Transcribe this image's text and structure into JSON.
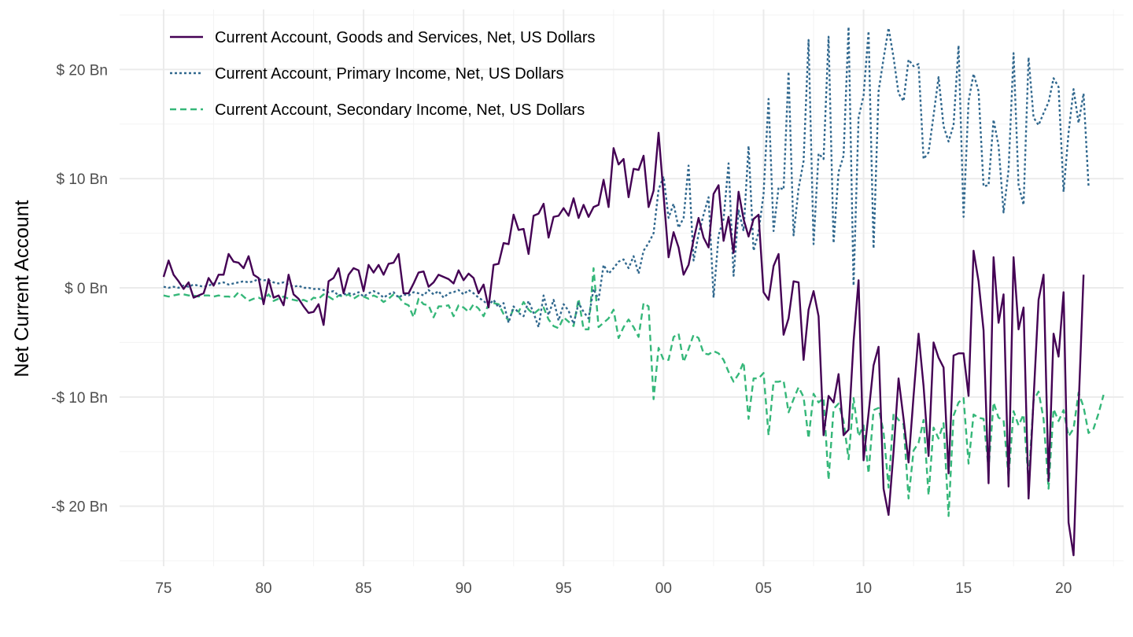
{
  "colors": {
    "goods_services": "#440154",
    "primary_income": "#31688E",
    "secondary_income": "#35B779",
    "grid_major": "#ebebeb",
    "grid_minor": "#f3f3f3"
  },
  "chart_data": {
    "type": "line",
    "title": "",
    "xlabel": "",
    "ylabel": "Net Current Account",
    "xlim": [
      1972.8,
      2023.0
    ],
    "ylim": [
      -25.5,
      25.5
    ],
    "x_ticks": [
      1975,
      1980,
      1985,
      1990,
      1995,
      2000,
      2005,
      2010,
      2015,
      2020
    ],
    "x_tick_labels": [
      "75",
      "80",
      "85",
      "90",
      "95",
      "00",
      "05",
      "10",
      "15",
      "20"
    ],
    "y_ticks": [
      -20,
      -10,
      0,
      10,
      20
    ],
    "y_tick_labels": [
      "-$ 20 Bn",
      "-$ 10 Bn",
      "$ 0 Bn",
      "$ 10 Bn",
      "$ 20 Bn"
    ],
    "grid": true,
    "legend_position": "top-left",
    "series": [
      {
        "name": "Current Account, Goods and Services, Net, US Dollars",
        "style": "solid",
        "x_start": 1975.0,
        "x_step": 0.25,
        "values": [
          1.0,
          2.5,
          1.2,
          0.6,
          -0.1,
          0.5,
          -0.9,
          -0.7,
          -0.5,
          0.9,
          0.2,
          1.2,
          1.2,
          3.1,
          2.4,
          2.3,
          1.8,
          2.9,
          1.2,
          0.9,
          -1.5,
          0.8,
          -0.9,
          -0.7,
          -1.6,
          1.2,
          -0.6,
          -1.0,
          -1.7,
          -2.3,
          -2.2,
          -1.5,
          -3.4,
          0.6,
          0.9,
          1.8,
          -0.5,
          1.2,
          1.8,
          1.6,
          -0.3,
          2.1,
          1.4,
          2.1,
          1.2,
          2.2,
          2.3,
          3.1,
          -0.5,
          -0.5,
          0.4,
          1.4,
          1.5,
          0.1,
          0.5,
          1.2,
          1.0,
          0.8,
          0.4,
          1.6,
          0.7,
          1.3,
          0.9,
          -0.5,
          0.3,
          -1.8,
          2.1,
          2.2,
          4.1,
          4.0,
          6.7,
          5.3,
          5.4,
          3.1,
          6.6,
          6.8,
          7.7,
          4.6,
          6.5,
          6.6,
          7.3,
          6.6,
          8.2,
          6.4,
          7.6,
          6.5,
          7.4,
          7.6,
          9.9,
          7.4,
          12.8,
          11.3,
          11.8,
          8.3,
          10.9,
          10.8,
          12.1,
          7.4,
          8.9,
          14.2,
          8.5,
          2.8,
          5.1,
          3.7,
          1.2,
          2.1,
          4.4,
          6.4,
          4.6,
          3.7,
          8.6,
          9.4,
          4.3,
          6.5,
          3.2,
          8.8,
          6.3,
          4.7,
          6.3,
          6.7,
          -0.4,
          -1.1,
          2.0,
          3.1,
          -4.3,
          -2.8,
          0.6,
          0.5,
          -6.6,
          -2.0,
          -0.3,
          -2.6,
          -13.5,
          -9.9,
          -10.5,
          -7.9,
          -13.5,
          -13.0,
          -4.9,
          0.7,
          -15.8,
          -11.5,
          -7.1,
          -5.4,
          -18.4,
          -20.8,
          -15.0,
          -8.3,
          -12.0,
          -16.0,
          -9.9,
          -4.2,
          -9.0,
          -15.4,
          -5.0,
          -6.4,
          -7.3,
          -17.0,
          -6.2,
          -6.0,
          -6.0,
          -9.9,
          3.4,
          0.6,
          -3.9,
          -17.9,
          2.8,
          -3.2,
          -0.6,
          -18.2,
          2.8,
          -3.8,
          -1.8,
          -19.3,
          -10.2,
          -1.1,
          1.2,
          -17.7,
          -4.2,
          -6.3,
          -0.4,
          -21.5,
          -24.5,
          -11.0,
          1.2
        ]
      },
      {
        "name": "Current Account, Primary Income, Net, US Dollars",
        "style": "dotted",
        "x_start": 1975.0,
        "x_step": 0.25,
        "values": [
          0.1,
          0.0,
          0.1,
          0.0,
          0.2,
          0.1,
          0.3,
          0.2,
          0.1,
          0.2,
          0.4,
          0.4,
          0.5,
          0.3,
          0.4,
          0.5,
          0.6,
          0.5,
          0.6,
          0.8,
          0.7,
          0.7,
          0.5,
          0.4,
          0.5,
          0.3,
          0.1,
          0.2,
          0.0,
          0.0,
          -0.1,
          -0.1,
          -0.2,
          -0.4,
          -0.3,
          -0.7,
          -0.6,
          -0.5,
          -0.6,
          -0.4,
          -0.8,
          -0.5,
          -0.3,
          -0.5,
          -0.9,
          -0.6,
          -0.4,
          -0.9,
          -0.6,
          -0.7,
          -0.4,
          -0.5,
          -0.7,
          -0.2,
          -0.6,
          -0.3,
          -0.9,
          -0.5,
          -0.4,
          -0.2,
          -0.6,
          -0.2,
          -0.5,
          -0.9,
          -1.2,
          -1.6,
          -1.1,
          -1.8,
          -1.4,
          -3.2,
          -1.7,
          -2.3,
          -2.6,
          -1.2,
          -2.3,
          -3.6,
          -0.7,
          -2.5,
          -1.1,
          -3.0,
          -1.5,
          -2.1,
          -3.3,
          -1.4,
          -2.2,
          -2.8,
          -0.1,
          -1.1,
          2.1,
          1.3,
          1.8,
          2.4,
          2.6,
          1.8,
          2.9,
          1.3,
          3.4,
          4.1,
          5.0,
          9.0,
          10.2,
          6.4,
          7.7,
          5.5,
          6.4,
          11.2,
          2.5,
          4.9,
          6.7,
          8.3,
          -0.9,
          4.8,
          6.3,
          11.4,
          1.1,
          7.1,
          5.2,
          13.0,
          3.4,
          5.1,
          8.6,
          17.3,
          5.2,
          9.2,
          9.0,
          19.8,
          4.8,
          9.1,
          11.6,
          22.7,
          4.0,
          12.3,
          11.8,
          23.0,
          4.1,
          10.6,
          12.1,
          23.9,
          0.2,
          15.6,
          17.6,
          23.5,
          3.6,
          18.0,
          21.0,
          23.8,
          21.1,
          17.8,
          17.1,
          20.9,
          20.3,
          20.5,
          11.8,
          12.4,
          15.8,
          19.3,
          14.8,
          13.4,
          14.9,
          22.2,
          6.5,
          17.1,
          19.6,
          18.0,
          9.3,
          9.4,
          15.4,
          13.0,
          6.9,
          10.8,
          21.5,
          9.4,
          7.6,
          21.1,
          15.6,
          14.9,
          16.0,
          17.0,
          19.2,
          18.4,
          8.8,
          14.2,
          18.2,
          15.1,
          17.8,
          9.3
        ]
      },
      {
        "name": "Current Account, Secondary Income, Net, US Dollars",
        "style": "dashed",
        "x_start": 1975.0,
        "x_step": 0.25,
        "values": [
          -0.7,
          -0.8,
          -0.7,
          -0.6,
          -0.6,
          -0.7,
          -0.7,
          -0.8,
          -0.7,
          -0.7,
          -0.8,
          -0.7,
          -0.8,
          -0.8,
          -0.9,
          -0.4,
          -0.8,
          -1.2,
          -1.0,
          -0.9,
          -1.1,
          -0.6,
          -1.2,
          -1.0,
          -0.8,
          -1.0,
          -1.1,
          -1.2,
          -1.1,
          -1.3,
          -0.9,
          -1.0,
          -0.6,
          -0.8,
          -1.1,
          -0.7,
          -0.8,
          -0.6,
          -1.0,
          -0.7,
          -0.8,
          -1.0,
          -0.7,
          -0.9,
          -1.3,
          -1.0,
          -0.6,
          -0.8,
          -1.4,
          -1.6,
          -2.7,
          -1.0,
          -1.5,
          -1.6,
          -2.7,
          -1.7,
          -1.7,
          -1.6,
          -2.6,
          -1.6,
          -1.8,
          -2.2,
          -1.5,
          -1.9,
          -2.6,
          -1.5,
          -1.4,
          -1.5,
          -2.4,
          -3.0,
          -1.9,
          -2.2,
          -1.3,
          -2.0,
          -2.4,
          -2.0,
          -1.8,
          -2.9,
          -3.5,
          -3.7,
          -2.7,
          -3.1,
          -3.5,
          -1.0,
          -3.8,
          -3.8,
          1.8,
          -3.6,
          -3.2,
          -2.8,
          -2.0,
          -4.6,
          -3.6,
          -2.9,
          -3.6,
          -4.5,
          -1.4,
          -1.7,
          -10.2,
          -5.5,
          -6.6,
          -6.6,
          -4.5,
          -4.2,
          -6.8,
          -5.6,
          -4.3,
          -4.6,
          -6.0,
          -6.1,
          -5.8,
          -6.0,
          -6.6,
          -7.7,
          -8.6,
          -7.9,
          -6.8,
          -12.0,
          -8.3,
          -8.3,
          -7.8,
          -13.5,
          -8.6,
          -8.6,
          -8.5,
          -11.4,
          -10.2,
          -9.1,
          -10.0,
          -13.8,
          -9.7,
          -10.5,
          -10.1,
          -17.6,
          -11.1,
          -10.6,
          -12.2,
          -15.7,
          -10.1,
          -13.6,
          -12.6,
          -17.0,
          -11.2,
          -11.0,
          -13.2,
          -18.3,
          -11.5,
          -12.1,
          -12.5,
          -19.3,
          -14.9,
          -14.2,
          -12.1,
          -19.0,
          -12.8,
          -13.8,
          -12.4,
          -20.9,
          -11.7,
          -10.5,
          -10.1,
          -16.1,
          -11.6,
          -11.9,
          -12.0,
          -16.6,
          -10.5,
          -11.9,
          -12.1,
          -17.4,
          -11.3,
          -12.6,
          -11.6,
          -17.8,
          -10.3,
          -9.5,
          -12.0,
          -18.4,
          -11.1,
          -12.2,
          -11.2,
          -13.6,
          -12.9,
          -9.6,
          -10.9,
          -13.3,
          -12.9,
          -11.5,
          -9.8
        ]
      }
    ]
  }
}
